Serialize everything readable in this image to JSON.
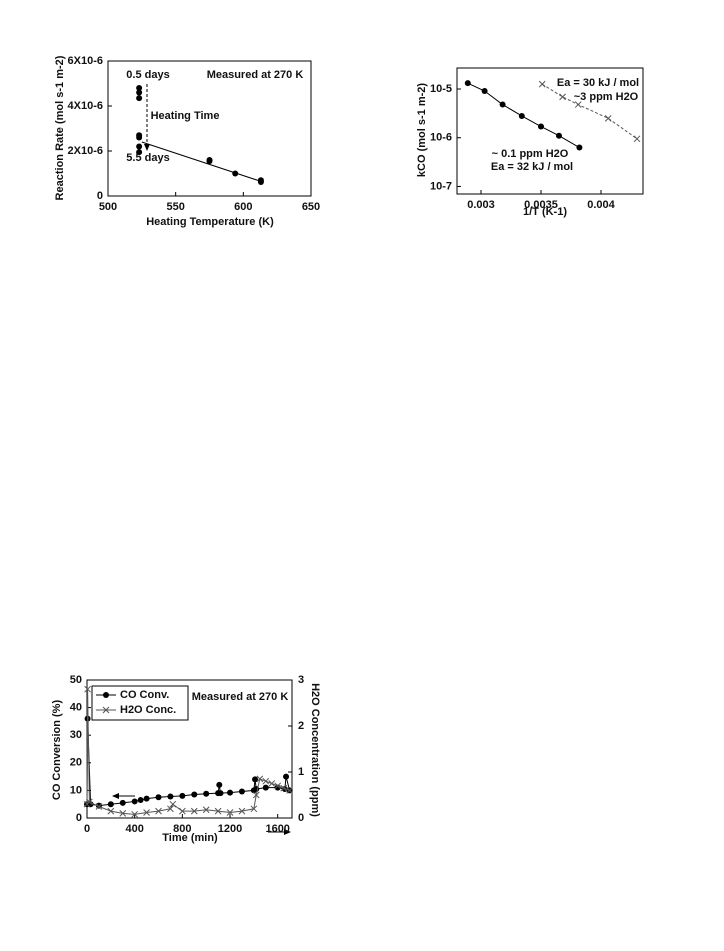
{
  "chart_data": [
    {
      "type": "scatter",
      "annotations": [
        "0.5 days",
        "Measured at 270 K",
        "Heating Time",
        "5.5 days"
      ],
      "xlabel": "Heating Temperature (K)",
      "ylabel": "Reaction Rate (mol s-1 m-2)",
      "xlim": [
        500,
        650
      ],
      "xticks": [
        500,
        550,
        600,
        650
      ],
      "ylim": [
        0,
        6e-06
      ],
      "yticks": [
        0,
        {
          "value": 2e-06,
          "label": "2X10-6"
        },
        {
          "value": 4e-06,
          "label": "4X10-6"
        },
        {
          "value": 6e-06,
          "label": "6X10-6"
        }
      ],
      "series": [
        {
          "color": "#000000",
          "marker": "circle",
          "line": "none",
          "x": [
            523,
            523,
            523,
            523,
            523,
            523,
            523,
            575,
            575,
            594,
            613,
            613
          ],
          "values": [
            4.8e-06,
            4.6e-06,
            4.35e-06,
            2.7e-06,
            2.6e-06,
            2.2e-06,
            1.95e-06,
            1.6e-06,
            1.55e-06,
            1e-06,
            7e-07,
            6.2e-07
          ]
        },
        {
          "color": "#000000",
          "marker": "none",
          "line": "solid",
          "x": [
            525,
            613
          ],
          "values": [
            2.4e-06,
            6.5e-07
          ]
        }
      ]
    },
    {
      "type": "line",
      "log_y": true,
      "annotations": [
        "Ea = 30 kJ / mol",
        "~3 ppm H2O",
        "~ 0.1 ppm H2O",
        "Ea = 32 kJ / mol"
      ],
      "xlabel": "1/T (K-1)",
      "ylabel": "kCO (mol s-1 m-2)",
      "xlim": [
        0.0028,
        0.00435
      ],
      "xticks": [
        0.003,
        0.0035,
        0.004
      ],
      "ylim": [
        7e-08,
        2.7e-05
      ],
      "yticks": [
        {
          "value": 1e-07,
          "label": "10-7"
        },
        {
          "value": 1e-06,
          "label": "10-6"
        },
        {
          "value": 1e-05,
          "label": "10-5"
        }
      ],
      "series": [
        {
          "color": "#000000",
          "marker": "circle",
          "line": "solid",
          "x": [
            0.00289,
            0.00303,
            0.00318,
            0.00334,
            0.0035,
            0.00365,
            0.00382
          ],
          "values": [
            1.32e-05,
            9.1e-06,
            4.8e-06,
            2.8e-06,
            1.7e-06,
            1.1e-06,
            6.3e-07
          ]
        },
        {
          "color": "#555555",
          "marker": "cross",
          "line": "dashed",
          "x": [
            0.00351,
            0.00368,
            0.00381,
            0.00406,
            0.0043
          ],
          "values": [
            1.26e-05,
            6.9e-06,
            4.8e-06,
            2.5e-06,
            9.5e-07
          ]
        }
      ]
    },
    {
      "type": "line",
      "legend": "upper left",
      "annotations": [
        "Measured at 270 K"
      ],
      "xlabel": "Time (min)",
      "ylabel": "CO Conversion (%)",
      "y2label": "H2O Concentration (ppm)",
      "xlim": [
        0,
        1720
      ],
      "xticks": [
        0,
        400,
        800,
        1200,
        1600
      ],
      "ylim": [
        0,
        50
      ],
      "yticks": [
        0,
        10,
        20,
        30,
        40,
        50
      ],
      "y2lim": [
        0,
        3
      ],
      "y2ticks": [
        0,
        1,
        2,
        3
      ],
      "series": [
        {
          "name": "CO Conv.",
          "color": "#000000",
          "marker": "circle",
          "line": "solid",
          "x": [
            0,
            5,
            30,
            100,
            200,
            300,
            400,
            450,
            500,
            600,
            700,
            800,
            900,
            1000,
            1100,
            1110,
            1120,
            1200,
            1300,
            1400,
            1410,
            1420,
            1500,
            1600,
            1660,
            1670,
            1700
          ],
          "values": [
            5,
            36,
            5,
            4.5,
            5,
            5.5,
            6,
            6.5,
            7,
            7.5,
            7.8,
            8,
            8.5,
            8.8,
            9,
            12,
            9,
            9.2,
            9.6,
            10,
            14,
            10.5,
            11,
            11,
            10.5,
            15,
            10
          ]
        },
        {
          "name": "H2O Conc.",
          "color": "#555555",
          "marker": "cross",
          "line": "solid",
          "axis": "y2",
          "x": [
            0,
            5,
            20,
            100,
            200,
            300,
            400,
            500,
            600,
            700,
            720,
            800,
            900,
            1000,
            1100,
            1200,
            1300,
            1400,
            1420,
            1450,
            1500,
            1550,
            1600,
            1650,
            1700
          ],
          "values": [
            0.3,
            2.8,
            0.35,
            0.25,
            0.15,
            0.1,
            0.08,
            0.12,
            0.15,
            0.2,
            0.3,
            0.15,
            0.15,
            0.18,
            0.15,
            0.12,
            0.15,
            0.2,
            0.5,
            0.85,
            0.8,
            0.75,
            0.7,
            0.65,
            0.6
          ]
        }
      ]
    }
  ]
}
